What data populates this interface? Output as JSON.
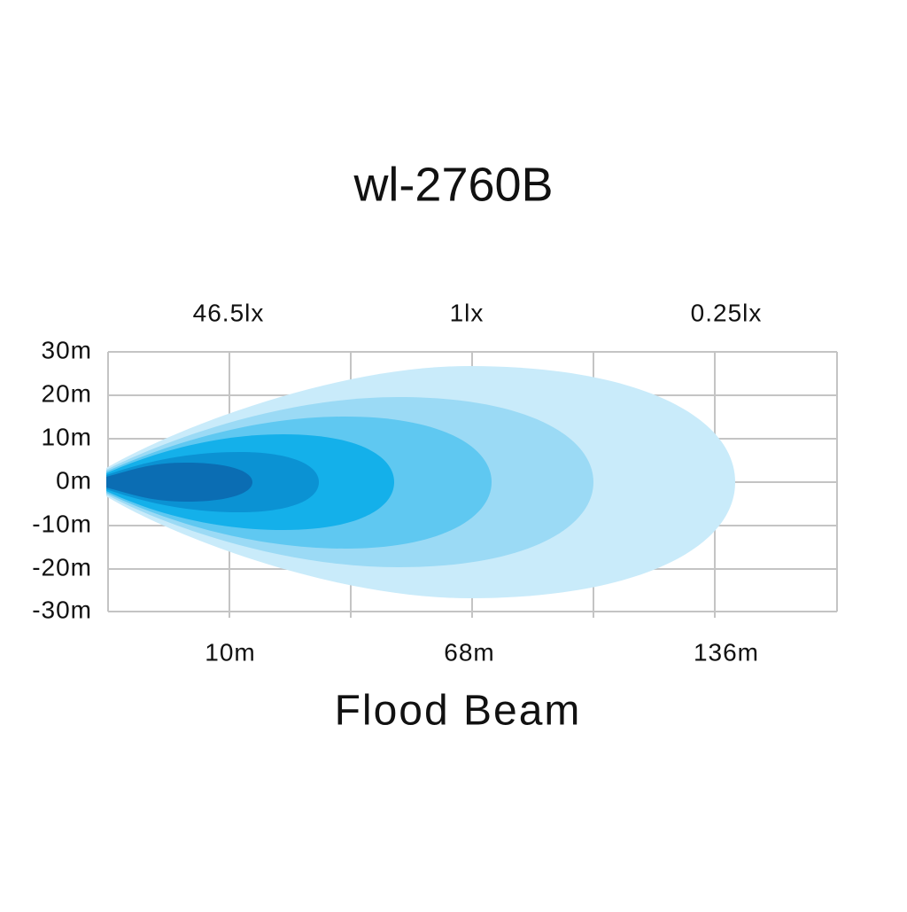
{
  "title": "wl-2760B",
  "illuminance_labels": [
    "46.5lx",
    "1lx",
    "0.25lx"
  ],
  "y_labels": [
    "30m",
    "20m",
    "10m",
    "0m",
    "-10m",
    "-20m",
    "-30m"
  ],
  "distance_labels": [
    "10m",
    "68m",
    "136m"
  ],
  "caption": "Flood Beam"
}
